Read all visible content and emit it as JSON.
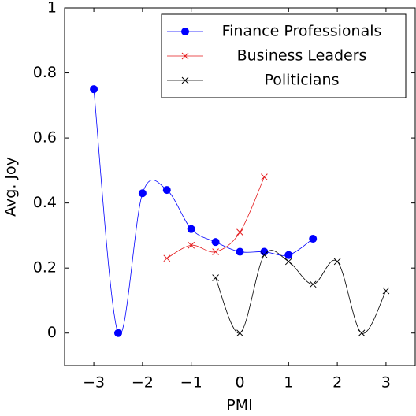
{
  "chart_data": {
    "type": "line",
    "smooth": true,
    "xlabel": "PMI",
    "ylabel": "Avg. Joy",
    "xlim": [
      -3.6,
      3.6
    ],
    "ylim": [
      -0.1,
      1
    ],
    "xticks": [
      {
        "value": -3,
        "label": "−3"
      },
      {
        "value": -2,
        "label": "−2"
      },
      {
        "value": -1,
        "label": "−1"
      },
      0,
      1,
      2,
      3
    ],
    "yticks": [
      0,
      0.2,
      0.4,
      0.6,
      0.8,
      1
    ],
    "legend": "top-right",
    "series": [
      {
        "name": "Finance Professionals",
        "color": "#0000ff",
        "marker": "circle",
        "x": [
          -3,
          -2.5,
          -2,
          -1.5,
          -1,
          -0.5,
          0,
          0.5,
          1,
          1.5
        ],
        "values": [
          0.75,
          0,
          0.43,
          0.44,
          0.32,
          0.28,
          0.25,
          0.25,
          0.24,
          0.29
        ]
      },
      {
        "name": "Business Leaders",
        "color": "#e41a1c",
        "marker": "x",
        "x": [
          -1.5,
          -1,
          -0.5,
          0,
          0.5
        ],
        "values": [
          0.23,
          0.27,
          0.25,
          0.31,
          0.48
        ]
      },
      {
        "name": "Politicians",
        "color": "#000000",
        "marker": "x",
        "x": [
          -0.5,
          0,
          0.5,
          1,
          1.5,
          2,
          2.5,
          3
        ],
        "values": [
          0.17,
          0,
          0.24,
          0.22,
          0.15,
          0.22,
          0,
          0.13
        ]
      }
    ]
  }
}
